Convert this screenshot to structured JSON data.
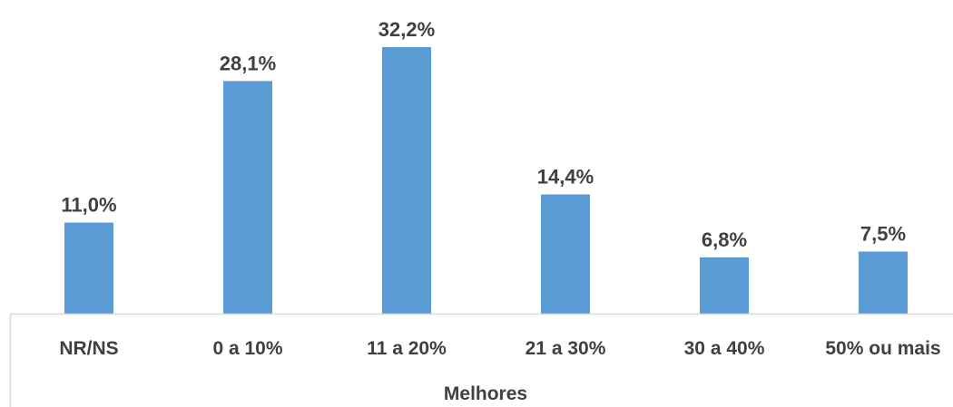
{
  "chart_data": {
    "type": "bar",
    "categories": [
      "NR/NS",
      "0 a 10%",
      "11 a 20%",
      "21 a 30%",
      "30 a 40%",
      "50% ou mais"
    ],
    "values": [
      11.0,
      28.1,
      32.2,
      14.4,
      6.8,
      7.5
    ],
    "data_labels": [
      "11,0%",
      "28,1%",
      "32,2%",
      "14,4%",
      "6,8%",
      "7,5%"
    ],
    "xlabel": "Melhores",
    "ylabel": "",
    "ylim": [
      0,
      35
    ],
    "grid": false,
    "legend": "none",
    "bar_color": "#5B9BD5",
    "text_color": "#404040",
    "axis_color": "#D9D9D9"
  }
}
